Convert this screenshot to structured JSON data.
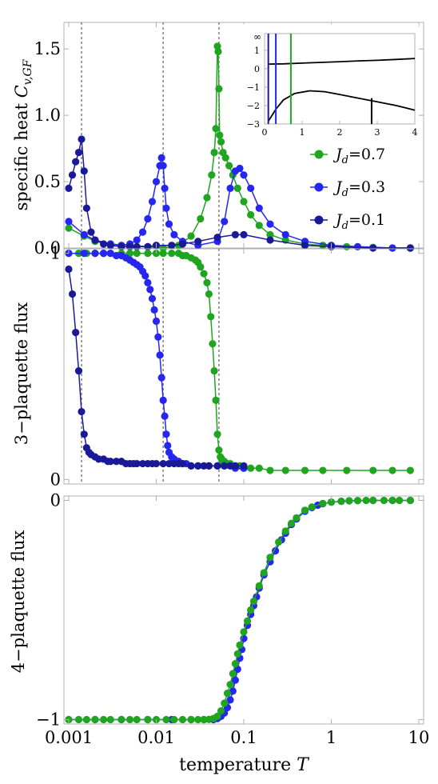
{
  "colors": {
    "jd07": "#1fa51f",
    "jd03": "#2626f0",
    "jd01": "#1a1a96"
  },
  "xaxis": {
    "label": "temperature",
    "label_var": "T",
    "scale": "log",
    "range": [
      0.001,
      10
    ],
    "ticks": [
      0.001,
      0.01,
      0.1,
      1,
      10
    ],
    "ticklabels": [
      "0.001",
      "0.01",
      "0.1",
      "1",
      "10"
    ]
  },
  "legend": [
    {
      "var": "J",
      "sub": "d",
      "value": "=0.7",
      "color": "#1fa51f"
    },
    {
      "var": "J",
      "sub": "d",
      "value": "=0.3",
      "color": "#2626f0"
    },
    {
      "var": "J",
      "sub": "d",
      "value": "=0.1",
      "color": "#1a1a96"
    }
  ],
  "chart_data": [
    {
      "type": "scatter",
      "ylabel": "specific heat",
      "ylabel_var": "C",
      "ylabel_sub": "v,GF",
      "ylim": [
        0,
        1.7
      ],
      "yticks": [
        0,
        0.5,
        1.0,
        1.5
      ],
      "yticklabels": [
        "0.0",
        "0.5",
        "1.0",
        "1.5"
      ],
      "vlines": [
        0.0014,
        0.012,
        0.052
      ],
      "series": [
        {
          "name": "Jd=0.7",
          "color": "#1fa51f",
          "x": [
            0.001,
            0.0015,
            0.002,
            0.003,
            0.005,
            0.008,
            0.012,
            0.018,
            0.025,
            0.032,
            0.038,
            0.043,
            0.046,
            0.048,
            0.05,
            0.051,
            0.052,
            0.053,
            0.055,
            0.058,
            0.062,
            0.068,
            0.075,
            0.085,
            0.1,
            0.12,
            0.15,
            0.2,
            0.3,
            0.5,
            0.8,
            1.5,
            3,
            5,
            8
          ],
          "y": [
            0.15,
            0.09,
            0.05,
            0.03,
            0.02,
            0.01,
            0.0,
            0.02,
            0.09,
            0.22,
            0.38,
            0.55,
            0.72,
            0.9,
            1.52,
            1.48,
            1.2,
            0.85,
            0.8,
            0.72,
            0.68,
            0.62,
            0.55,
            0.45,
            0.35,
            0.25,
            0.17,
            0.1,
            0.06,
            0.03,
            0.02,
            0.01,
            0.005,
            0.0,
            0.0
          ]
        },
        {
          "name": "Jd=0.3",
          "color": "#2626f0",
          "x": [
            0.001,
            0.0015,
            0.002,
            0.003,
            0.004,
            0.005,
            0.006,
            0.007,
            0.008,
            0.009,
            0.01,
            0.011,
            0.0115,
            0.012,
            0.0125,
            0.013,
            0.014,
            0.016,
            0.02,
            0.03,
            0.05,
            0.06,
            0.07,
            0.08,
            0.09,
            0.1,
            0.12,
            0.15,
            0.2,
            0.3,
            0.5,
            1,
            2,
            5,
            8
          ],
          "y": [
            0.2,
            0.1,
            0.06,
            0.03,
            0.02,
            0.03,
            0.06,
            0.12,
            0.22,
            0.35,
            0.5,
            0.62,
            0.68,
            0.62,
            0.45,
            0.3,
            0.18,
            0.1,
            0.05,
            0.02,
            0.05,
            0.2,
            0.45,
            0.58,
            0.6,
            0.55,
            0.45,
            0.3,
            0.18,
            0.1,
            0.05,
            0.02,
            0.01,
            0.0,
            0.0
          ]
        },
        {
          "name": "Jd=0.1",
          "color": "#1a1a96",
          "x": [
            0.001,
            0.0011,
            0.0012,
            0.0013,
            0.0014,
            0.0015,
            0.0016,
            0.0018,
            0.002,
            0.0025,
            0.003,
            0.004,
            0.005,
            0.006,
            0.008,
            0.01,
            0.015,
            0.02,
            0.03,
            0.05,
            0.08,
            0.1,
            0.2,
            0.5,
            1,
            3,
            8
          ],
          "y": [
            0.45,
            0.55,
            0.65,
            0.72,
            0.82,
            0.58,
            0.3,
            0.12,
            0.06,
            0.03,
            0.02,
            0.01,
            0.01,
            0.01,
            0.01,
            0.02,
            0.02,
            0.03,
            0.05,
            0.08,
            0.1,
            0.1,
            0.06,
            0.02,
            0.01,
            0.0,
            0.0
          ]
        }
      ],
      "inset": {
        "xlim": [
          0,
          4
        ],
        "ylim": [
          -3,
          1.9
        ],
        "xticks": [
          0,
          1,
          2,
          3,
          4
        ],
        "xticklabels": [
          "0",
          "1",
          "2",
          "3",
          "4"
        ],
        "yticks": [
          -3,
          -2,
          -1,
          0,
          1
        ],
        "yticklabels": [
          "−3",
          "−2",
          "−1",
          "0",
          "1"
        ],
        "ytop_label": "∞",
        "vlines": [
          {
            "x": 0.1,
            "color": "#1a1a96"
          },
          {
            "x": 0.3,
            "color": "#2626f0"
          },
          {
            "x": 0.7,
            "color": "#1fa51f"
          },
          {
            "x": 2.85,
            "color": "#000000",
            "ymax": -1.6
          }
        ],
        "curves": [
          {
            "x": [
              0.1,
              0.5,
              1,
              1.5,
              2,
              2.5,
              3,
              3.5,
              4
            ],
            "y": [
              0.25,
              0.26,
              0.3,
              0.34,
              0.38,
              0.42,
              0.45,
              0.5,
              0.55
            ]
          },
          {
            "x": [
              0.1,
              0.3,
              0.5,
              0.8,
              1.2,
              1.6,
              2,
              2.5,
              3,
              3.5,
              4
            ],
            "y": [
              -2.85,
              -2.2,
              -1.7,
              -1.35,
              -1.2,
              -1.25,
              -1.4,
              -1.6,
              -1.8,
              -2,
              -2.25
            ]
          }
        ]
      }
    },
    {
      "type": "scatter",
      "ylabel": "3−plaquette flux",
      "ylim": [
        -0.02,
        1.02
      ],
      "yticks": [
        0,
        1
      ],
      "yticklabels": [
        "0",
        "1"
      ],
      "vlines": [
        0.0014,
        0.012,
        0.052
      ],
      "series": [
        {
          "name": "Jd=0.7",
          "color": "#1fa51f",
          "x": [
            0.001,
            0.0013,
            0.0016,
            0.002,
            0.0025,
            0.003,
            0.004,
            0.005,
            0.006,
            0.008,
            0.01,
            0.012,
            0.015,
            0.018,
            0.02,
            0.022,
            0.025,
            0.028,
            0.03,
            0.032,
            0.035,
            0.038,
            0.04,
            0.042,
            0.044,
            0.046,
            0.048,
            0.05,
            0.052,
            0.054,
            0.056,
            0.058,
            0.06,
            0.065,
            0.07,
            0.08,
            0.09,
            0.1,
            0.12,
            0.15,
            0.2,
            0.3,
            0.5,
            0.8,
            1.5,
            3,
            5,
            8
          ],
          "y": [
            1,
            1,
            1,
            1,
            1,
            1,
            1,
            1,
            1,
            1,
            1,
            1,
            1,
            1,
            0.99,
            0.99,
            0.98,
            0.97,
            0.96,
            0.94,
            0.91,
            0.87,
            0.82,
            0.72,
            0.6,
            0.48,
            0.35,
            0.2,
            0.13,
            0.1,
            0.09,
            0.08,
            0.08,
            0.07,
            0.07,
            0.06,
            0.06,
            0.05,
            0.05,
            0.05,
            0.04,
            0.04,
            0.04,
            0.04,
            0.04,
            0.04,
            0.04,
            0.04
          ]
        },
        {
          "name": "Jd=0.3",
          "color": "#2626f0",
          "x": [
            0.001,
            0.0015,
            0.002,
            0.0025,
            0.003,
            0.0035,
            0.004,
            0.0045,
            0.005,
            0.0055,
            0.006,
            0.0065,
            0.007,
            0.0075,
            0.008,
            0.0085,
            0.009,
            0.0095,
            0.01,
            0.0105,
            0.011,
            0.0115,
            0.012,
            0.0125,
            0.013,
            0.0135,
            0.014,
            0.015,
            0.016,
            0.017,
            0.018,
            0.02,
            0.022,
            0.025,
            0.03,
            0.04,
            0.05,
            0.06,
            0.08,
            0.1
          ],
          "y": [
            1,
            1,
            1,
            1,
            1,
            0.99,
            0.99,
            0.98,
            0.97,
            0.96,
            0.95,
            0.94,
            0.92,
            0.9,
            0.87,
            0.84,
            0.8,
            0.75,
            0.7,
            0.63,
            0.55,
            0.45,
            0.35,
            0.28,
            0.2,
            0.15,
            0.12,
            0.1,
            0.09,
            0.08,
            0.08,
            0.07,
            0.07,
            0.06,
            0.06,
            0.06,
            0.06,
            0.06,
            0.05,
            0.05
          ]
        },
        {
          "name": "Jd=0.1",
          "color": "#1a1a96",
          "x": [
            0.001,
            0.0011,
            0.0012,
            0.0013,
            0.0014,
            0.0015,
            0.0016,
            0.0017,
            0.0018,
            0.002,
            0.0022,
            0.0025,
            0.0028,
            0.003,
            0.0035,
            0.004,
            0.0045,
            0.005,
            0.0055,
            0.006,
            0.007,
            0.008,
            0.009,
            0.01,
            0.012,
            0.014,
            0.016,
            0.018,
            0.02,
            0.025,
            0.03,
            0.035,
            0.04,
            0.05,
            0.06,
            0.07,
            0.08,
            0.1
          ],
          "y": [
            0.93,
            0.82,
            0.65,
            0.48,
            0.3,
            0.2,
            0.14,
            0.12,
            0.11,
            0.1,
            0.09,
            0.09,
            0.08,
            0.08,
            0.08,
            0.08,
            0.07,
            0.07,
            0.07,
            0.07,
            0.07,
            0.07,
            0.07,
            0.07,
            0.07,
            0.07,
            0.07,
            0.07,
            0.07,
            0.06,
            0.06,
            0.06,
            0.06,
            0.06,
            0.06,
            0.06,
            0.06,
            0.06
          ]
        }
      ]
    },
    {
      "type": "scatter",
      "ylabel": "4−plaquette flux",
      "ylim": [
        -1.02,
        0.02
      ],
      "yticks": [
        -1,
        0
      ],
      "yticklabels": [
        "−1",
        "0"
      ],
      "series": [
        {
          "name": "Jd=0.3",
          "color": "#2626f0",
          "x": [
            0.001,
            0.002,
            0.004,
            0.008,
            0.015,
            0.025,
            0.035,
            0.045,
            0.05,
            0.055,
            0.06,
            0.065,
            0.07,
            0.075,
            0.08,
            0.085,
            0.09,
            0.095,
            0.1,
            0.11,
            0.12,
            0.13,
            0.14,
            0.15,
            0.17,
            0.2,
            0.23,
            0.27,
            0.3,
            0.35,
            0.4,
            0.5,
            0.6,
            0.7,
            0.8,
            1,
            1.3,
            1.6,
            2,
            3,
            5,
            8
          ],
          "y": [
            -1,
            -1,
            -1,
            -1,
            -1,
            -1,
            -1,
            -1,
            -0.995,
            -0.985,
            -0.97,
            -0.945,
            -0.91,
            -0.87,
            -0.82,
            -0.77,
            -0.72,
            -0.68,
            -0.63,
            -0.57,
            -0.52,
            -0.48,
            -0.44,
            -0.4,
            -0.34,
            -0.28,
            -0.23,
            -0.18,
            -0.15,
            -0.11,
            -0.085,
            -0.05,
            -0.033,
            -0.022,
            -0.015,
            -0.008,
            -0.004,
            -0.002,
            -0.001,
            0,
            0,
            0
          ]
        },
        {
          "name": "Jd=0.7",
          "color": "#1fa51f",
          "x": [
            0.001,
            0.0013,
            0.0016,
            0.002,
            0.0025,
            0.003,
            0.004,
            0.005,
            0.006,
            0.008,
            0.01,
            0.013,
            0.016,
            0.02,
            0.025,
            0.03,
            0.035,
            0.04,
            0.045,
            0.05,
            0.055,
            0.06,
            0.065,
            0.07,
            0.075,
            0.08,
            0.085,
            0.09,
            0.1,
            0.11,
            0.12,
            0.13,
            0.15,
            0.17,
            0.2,
            0.25,
            0.3,
            0.35,
            0.4,
            0.5,
            0.6,
            0.8,
            1,
            1.3,
            1.6,
            2,
            2.5,
            3,
            4,
            5,
            6,
            8
          ],
          "y": [
            -1,
            -1,
            -1,
            -1,
            -1,
            -1,
            -1,
            -1,
            -1,
            -1,
            -1,
            -1,
            -1,
            -1,
            -1,
            -1,
            -1,
            -0.999,
            -0.995,
            -0.985,
            -0.96,
            -0.925,
            -0.88,
            -0.84,
            -0.79,
            -0.745,
            -0.7,
            -0.66,
            -0.6,
            -0.55,
            -0.5,
            -0.46,
            -0.39,
            -0.33,
            -0.26,
            -0.19,
            -0.14,
            -0.105,
            -0.08,
            -0.045,
            -0.03,
            -0.014,
            -0.008,
            -0.004,
            -0.002,
            -0.001,
            0,
            0,
            0,
            0,
            0,
            0
          ]
        }
      ]
    }
  ]
}
